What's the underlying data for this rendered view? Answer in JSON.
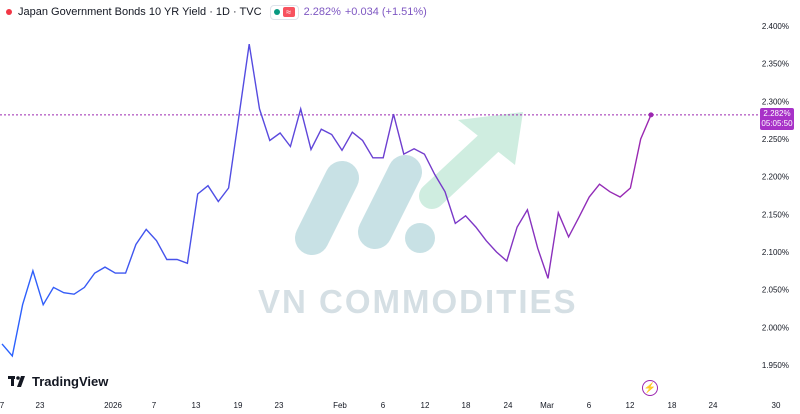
{
  "header": {
    "title": "Japan Government Bonds 10 YR Yield · 1D · TVC",
    "price": "2.282%",
    "change": "+0.034 (+1.51%)"
  },
  "brand": {
    "name": "TradingView"
  },
  "watermark": "VN COMMODITIES",
  "last_price": {
    "value": "2.282%",
    "countdown": "05:05:50"
  },
  "colors": {
    "line_start": "#2962ff",
    "line_end": "#9c27b0",
    "accent": "#a832c8",
    "watermark_green": "#a8e0c8",
    "watermark_teal": "#9cc9d0"
  },
  "icons": {
    "alert": "lightning-icon"
  },
  "chart_data": {
    "type": "line",
    "ylim": [
      1.93,
      2.41
    ],
    "y_ticks": [
      1.95,
      2.0,
      2.05,
      2.1,
      2.15,
      2.2,
      2.25,
      2.3,
      2.35,
      2.4
    ],
    "y_tick_labels": [
      "1.950%",
      "2.000%",
      "2.050%",
      "2.100%",
      "2.150%",
      "2.200%",
      "2.250%",
      "2.300%",
      "2.350%",
      "2.400%"
    ],
    "x_tick_labels": [
      "7",
      "23",
      "2026",
      "7",
      "13",
      "19",
      "23",
      "Feb",
      "6",
      "12",
      "18",
      "24",
      "Mar",
      "6",
      "12",
      "18",
      "24",
      "30"
    ],
    "series": [
      {
        "values": [
          1.978,
          1.962,
          2.03,
          2.075,
          2.03,
          2.053,
          2.046,
          2.044,
          2.053,
          2.072,
          2.08,
          2.072,
          2.072,
          2.11,
          2.13,
          2.115,
          2.09,
          2.09,
          2.085,
          2.177,
          2.188,
          2.167,
          2.185,
          2.28,
          2.376,
          2.29,
          2.248,
          2.258,
          2.24,
          2.29,
          2.236,
          2.263,
          2.256,
          2.235,
          2.259,
          2.248,
          2.225,
          2.225,
          2.283,
          2.23,
          2.237,
          2.23,
          2.203,
          2.18,
          2.138,
          2.148,
          2.133,
          2.115,
          2.1,
          2.088,
          2.133,
          2.156,
          2.105,
          2.065,
          2.152,
          2.12,
          2.146,
          2.173,
          2.19,
          2.18,
          2.173,
          2.185,
          2.25,
          2.282
        ]
      }
    ]
  }
}
